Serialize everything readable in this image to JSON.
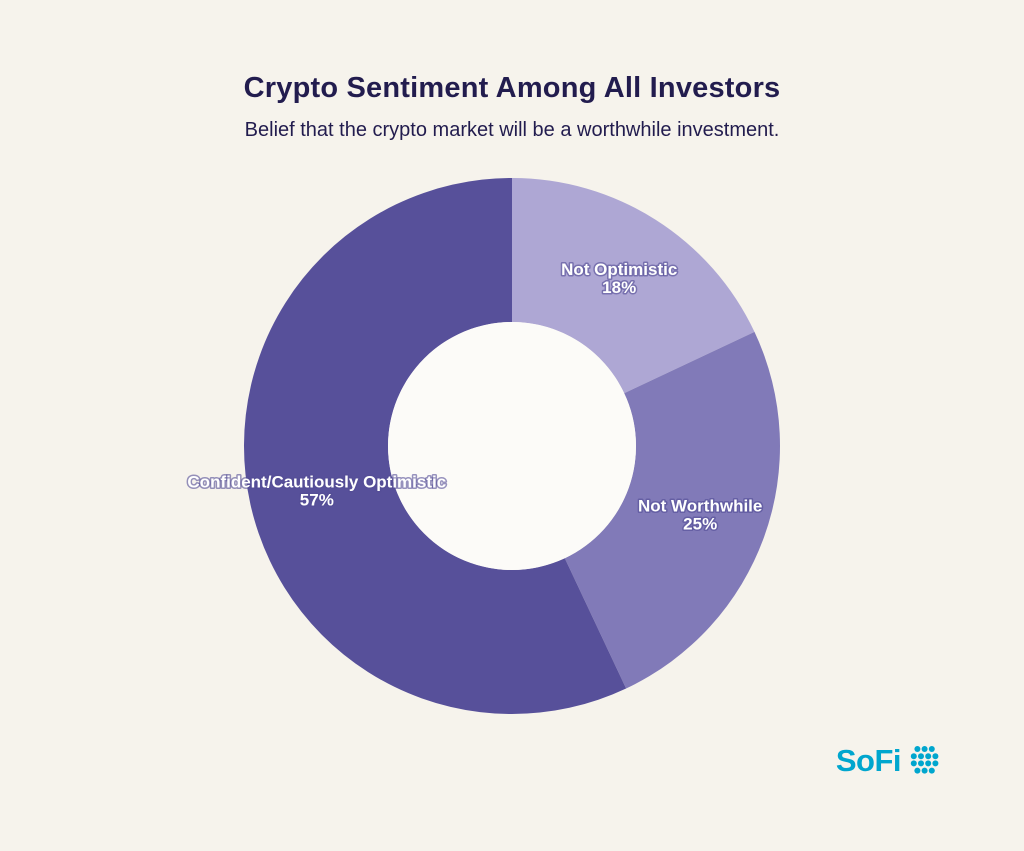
{
  "page": {
    "background": "#f6f3ec",
    "text_color": "#221c4e"
  },
  "chart_data": {
    "type": "pie",
    "subtype": "donut",
    "title": "Crypto Sentiment Among All Investors",
    "subtitle": "Belief that the crypto market will be a worthwhile investment.",
    "start_angle_deg": -90,
    "direction": "clockwise",
    "hole_ratio": 0.463,
    "hole_color": "#fcfbf8",
    "label_color": "#ffffff",
    "label_radius": 200,
    "legend": "labels-on-slices",
    "slices": [
      {
        "label": "Not Optimistic",
        "value": 18,
        "display": "18%",
        "color": "#aea7d4"
      },
      {
        "label": "Not Worthwhile",
        "value": 25,
        "display": "25%",
        "color": "#817ab8"
      },
      {
        "label": "Confident/Cautiously Optimistic",
        "value": 57,
        "display": "57%",
        "color": "#57509a"
      }
    ]
  },
  "footer": {
    "brand": "SoFi",
    "brand_color": "#00a6ce"
  }
}
